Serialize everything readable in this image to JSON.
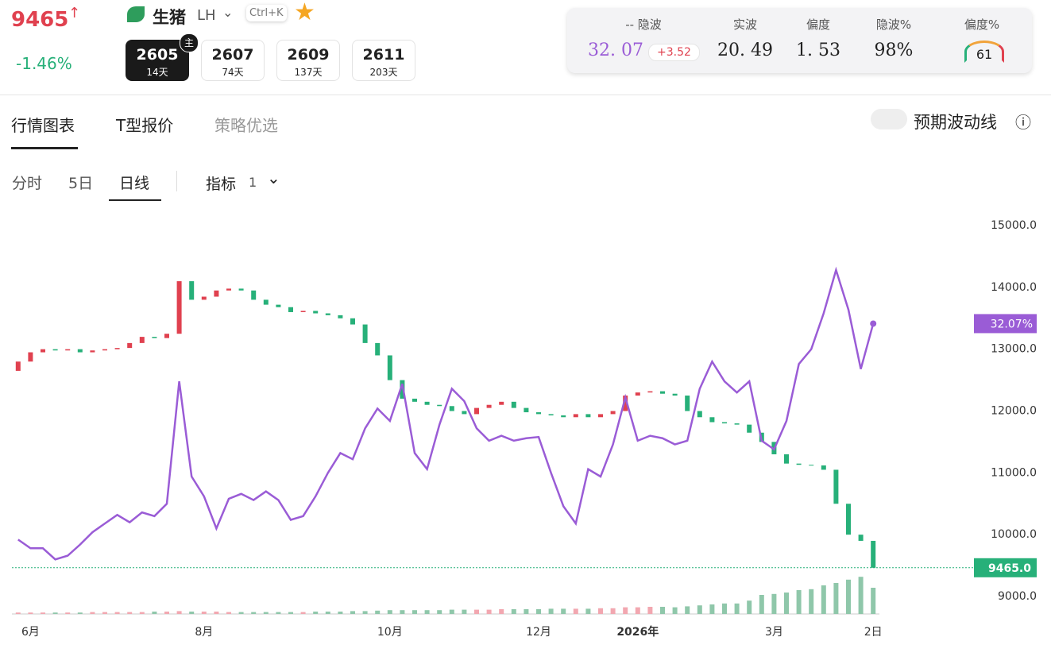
{
  "header": {
    "price": "9465",
    "change": "-1.46%",
    "name": "生猪",
    "code": "LH",
    "shortcut": "Ctrl+K",
    "contracts": [
      {
        "code": "2605",
        "days": "14天",
        "badge": "主"
      },
      {
        "code": "2607",
        "days": "74天"
      },
      {
        "code": "2609",
        "days": "137天"
      },
      {
        "code": "2611",
        "days": "203天"
      }
    ],
    "stats": [
      {
        "label": "-- 隐波",
        "value": "32. 07",
        "delta": "+3.52"
      },
      {
        "label": "实波",
        "value": "20. 49"
      },
      {
        "label": "偏度",
        "value": "1. 53"
      },
      {
        "label": "隐波%",
        "value": "98%"
      },
      {
        "label": "偏度%",
        "value": "61"
      }
    ]
  },
  "tabs": [
    "行情图表",
    "T型报价",
    "策略优选"
  ],
  "toggle": "预期波动线",
  "periods": [
    "分时",
    "5日",
    "日线"
  ],
  "indicator": {
    "label": "指标",
    "count": "1"
  },
  "chart_data": {
    "type": "candlestick",
    "categories": [
      null,
      "6月",
      null,
      null,
      null,
      null,
      null,
      null,
      null,
      null,
      null,
      null,
      null,
      null,
      null,
      "8月",
      null,
      null,
      null,
      null,
      null,
      null,
      null,
      null,
      null,
      null,
      null,
      null,
      null,
      null,
      "10月",
      null,
      null,
      null,
      null,
      null,
      null,
      null,
      null,
      null,
      null,
      null,
      "12月",
      null,
      null,
      null,
      null,
      null,
      null,
      null,
      "2026年",
      null,
      null,
      null,
      null,
      null,
      null,
      null,
      null,
      null,
      null,
      "3月",
      null,
      null,
      null,
      null,
      null,
      null,
      null,
      "2日"
    ],
    "open": [
      12650,
      12800,
      12950,
      13000,
      12980,
      13000,
      12950,
      12980,
      13000,
      13020,
      13100,
      13200,
      13180,
      13250,
      14100,
      13800,
      13850,
      13950,
      13980,
      13950,
      13800,
      13720,
      13680,
      13600,
      13620,
      13580,
      13550,
      13500,
      13400,
      13100,
      12900,
      12500,
      12200,
      12150,
      12100,
      12080,
      12000,
      11950,
      12050,
      12100,
      12150,
      12050,
      11980,
      11950,
      11930,
      11900,
      11950,
      11900,
      11950,
      12000,
      12250,
      12300,
      12320,
      12280,
      12250,
      12000,
      11900,
      11820,
      11800,
      11780,
      11650,
      11500,
      11300,
      11150,
      11130,
      11120,
      11050,
      10500,
      10000,
      9900
    ],
    "close": [
      12800,
      12950,
      13000,
      12980,
      13000,
      12950,
      12980,
      13000,
      13020,
      13100,
      13200,
      13180,
      13250,
      14100,
      13800,
      13850,
      13950,
      13980,
      13950,
      13800,
      13720,
      13680,
      13600,
      13620,
      13580,
      13550,
      13500,
      13400,
      13100,
      12900,
      12500,
      12200,
      12150,
      12100,
      12080,
      12000,
      11950,
      12050,
      12100,
      12150,
      12050,
      11980,
      11950,
      11930,
      11900,
      11950,
      11900,
      11950,
      12000,
      12250,
      12300,
      12320,
      12280,
      12250,
      12000,
      11900,
      11820,
      11800,
      11780,
      11650,
      11500,
      11300,
      11150,
      11130,
      11120,
      11050,
      10500,
      10000,
      9900,
      9465
    ],
    "ylim": [
      9000,
      15000
    ],
    "yticks": [
      {
        "value": 15000,
        "label": "15000.0"
      },
      {
        "value": 14000,
        "label": "14000.0"
      },
      {
        "value": 13000,
        "label": "13000.0"
      },
      {
        "value": 12000,
        "label": "12000.0"
      },
      {
        "value": 11000,
        "label": "11000.0"
      },
      {
        "value": 10000,
        "label": "10000.0"
      },
      {
        "value": 9000,
        "label": "9000.0"
      }
    ],
    "last_price": {
      "value": 9465,
      "label": "9465.0"
    },
    "up_color": "#e0414f",
    "down_color": "#27b079",
    "iv": {
      "name": "隐波",
      "color": "#9a5cd6",
      "axis": "y2",
      "values": [
        14.6,
        13.9,
        13.9,
        13.0,
        13.3,
        14.2,
        15.2,
        15.9,
        16.6,
        16.0,
        16.8,
        16.5,
        17.5,
        27.4,
        19.7,
        18.1,
        15.5,
        17.9,
        18.3,
        17.8,
        18.5,
        17.8,
        16.2,
        16.5,
        18.1,
        20.0,
        21.6,
        21.1,
        23.6,
        25.2,
        24.2,
        27.2,
        21.6,
        20.3,
        23.9,
        26.8,
        25.8,
        23.6,
        22.6,
        23.0,
        22.6,
        22.8,
        22.9,
        20.0,
        17.3,
        15.9,
        20.3,
        19.7,
        22.3,
        26.1,
        22.6,
        23.0,
        22.8,
        22.3,
        22.6,
        26.8,
        29.0,
        27.4,
        26.5,
        27.4,
        22.6,
        21.9,
        24.2,
        28.8,
        30.0,
        32.9,
        36.4,
        33.2,
        28.4,
        32.07
      ],
      "last_label": "32.07%"
    },
    "y2lim": [
      10,
      40
    ],
    "volume": {
      "up_color": "#f2a7b0",
      "down_color": "#8fc7aa",
      "ylim": [
        0,
        100
      ],
      "values": [
        3,
        3,
        3,
        3,
        3,
        3,
        4,
        4,
        4,
        4,
        4,
        5,
        5,
        6,
        5,
        5,
        5,
        4,
        4,
        4,
        4,
        4,
        4,
        4,
        5,
        5,
        5,
        6,
        6,
        7,
        8,
        8,
        8,
        8,
        8,
        9,
        9,
        9,
        9,
        10,
        10,
        10,
        10,
        11,
        11,
        11,
        11,
        12,
        12,
        14,
        14,
        15,
        15,
        14,
        16,
        18,
        20,
        22,
        22,
        28,
        40,
        42,
        45,
        50,
        52,
        60,
        65,
        72,
        78,
        55
      ]
    }
  }
}
